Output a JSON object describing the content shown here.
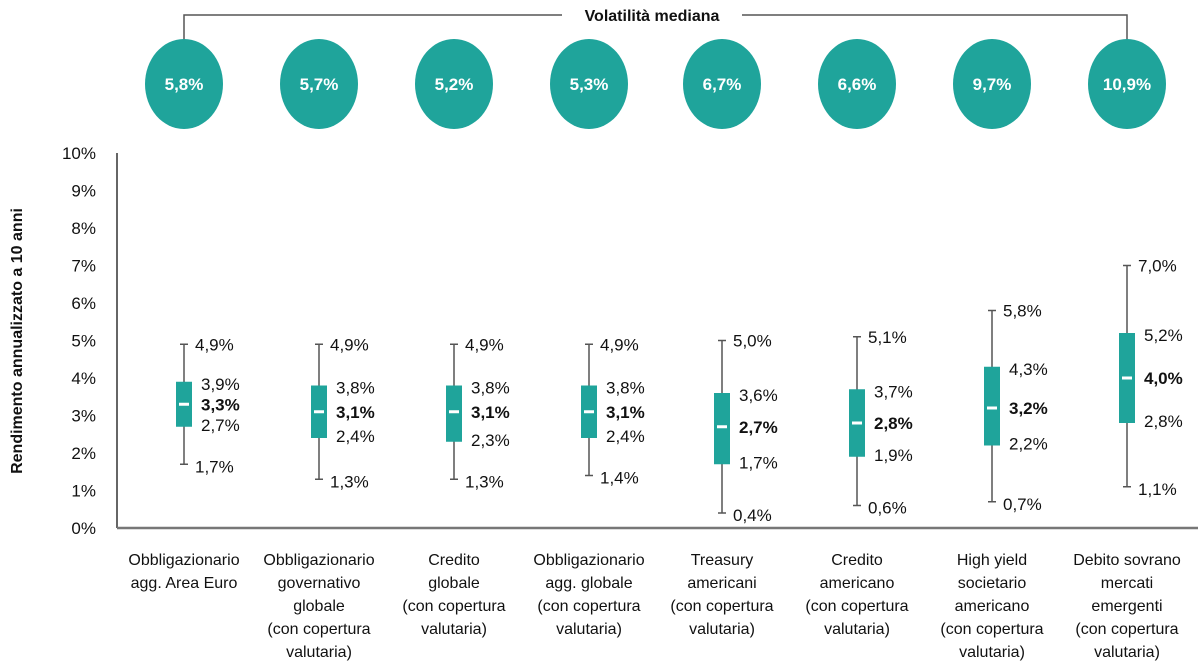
{
  "colors": {
    "accent": "#1fa49b",
    "axis": "#333333",
    "whisker": "#555555",
    "text": "#111111",
    "median_mark": "#ffffff"
  },
  "volatility": {
    "title": "Volatilità mediana",
    "values": [
      "5,8%",
      "5,7%",
      "5,2%",
      "5,3%",
      "6,7%",
      "6,6%",
      "9,7%",
      "10,9%"
    ]
  },
  "chart_data": {
    "type": "boxplot",
    "title": "",
    "xlabel": "",
    "ylabel": "Rendimento annualizzato a 10 anni",
    "ylim": [
      0,
      10
    ],
    "yticks": [
      "0%",
      "1%",
      "2%",
      "3%",
      "4%",
      "5%",
      "6%",
      "7%",
      "8%",
      "9%",
      "10%"
    ],
    "grid": false,
    "categories": [
      [
        "Obbligazionario",
        "agg. Area Euro"
      ],
      [
        "Obbligazionario",
        "governativo",
        "globale",
        "(con copertura",
        "valutaria)"
      ],
      [
        "Credito",
        "globale",
        "(con copertura",
        "valutaria)"
      ],
      [
        "Obbligazionario",
        "agg. globale",
        "(con copertura",
        "valutaria)"
      ],
      [
        "Treasury",
        "americani",
        "(con copertura",
        "valutaria)"
      ],
      [
        "Credito",
        "americano",
        "(con copertura",
        "valutaria)"
      ],
      [
        "High yield",
        "societario",
        "americano",
        "(con copertura",
        "valutaria)"
      ],
      [
        "Debito sovrano",
        "mercati",
        "emergenti",
        "(con copertura",
        "valutaria)"
      ]
    ],
    "series": [
      {
        "name": "Obbligazionario agg. Area Euro",
        "max": 4.9,
        "q3": 3.9,
        "median": 3.3,
        "q1": 2.7,
        "min": 1.7,
        "labels": [
          "4,9%",
          "3,9%",
          "3,3%",
          "2,7%",
          "1,7%"
        ],
        "volatility": 5.8
      },
      {
        "name": "Obbligazionario governativo globale (con copertura valutaria)",
        "max": 4.9,
        "q3": 3.8,
        "median": 3.1,
        "q1": 2.4,
        "min": 1.3,
        "labels": [
          "4,9%",
          "3,8%",
          "3,1%",
          "2,4%",
          "1,3%"
        ],
        "volatility": 5.7
      },
      {
        "name": "Credito globale (con copertura valutaria)",
        "max": 4.9,
        "q3": 3.8,
        "median": 3.1,
        "q1": 2.3,
        "min": 1.3,
        "labels": [
          "4,9%",
          "3,8%",
          "3,1%",
          "2,3%",
          "1,3%"
        ],
        "volatility": 5.2
      },
      {
        "name": "Obbligazionario agg. globale (con copertura valutaria)",
        "max": 4.9,
        "q3": 3.8,
        "median": 3.1,
        "q1": 2.4,
        "min": 1.4,
        "labels": [
          "4,9%",
          "3,8%",
          "3,1%",
          "2,4%",
          "1,4%"
        ],
        "volatility": 5.3
      },
      {
        "name": "Treasury americani (con copertura valutaria)",
        "max": 5.0,
        "q3": 3.6,
        "median": 2.7,
        "q1": 1.7,
        "min": 0.4,
        "labels": [
          "5,0%",
          "3,6%",
          "2,7%",
          "1,7%",
          "0,4%"
        ],
        "volatility": 6.7
      },
      {
        "name": "Credito americano (con copertura valutaria)",
        "max": 5.1,
        "q3": 3.7,
        "median": 2.8,
        "q1": 1.9,
        "min": 0.6,
        "labels": [
          "5,1%",
          "3,7%",
          "2,8%",
          "1,9%",
          "0,6%"
        ],
        "volatility": 6.6
      },
      {
        "name": "High yield societario americano (con copertura valutaria)",
        "max": 5.8,
        "q3": 4.3,
        "median": 3.2,
        "q1": 2.2,
        "min": 0.7,
        "labels": [
          "5,8%",
          "4,3%",
          "3,2%",
          "2,2%",
          "0,7%"
        ],
        "volatility": 9.7
      },
      {
        "name": "Debito sovrano mercati emergenti (con copertura valutaria)",
        "max": 7.0,
        "q3": 5.2,
        "median": 4.0,
        "q1": 2.8,
        "min": 1.1,
        "labels": [
          "7,0%",
          "5,2%",
          "4,0%",
          "2,8%",
          "1,1%"
        ],
        "volatility": 10.9
      }
    ]
  }
}
